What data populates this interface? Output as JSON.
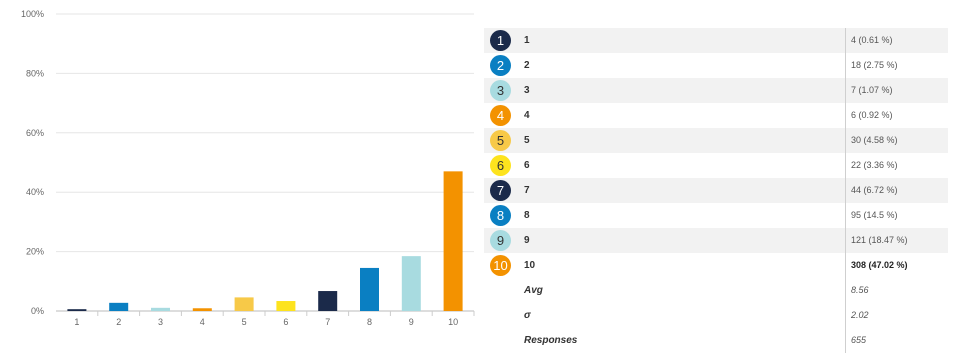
{
  "chart_data": {
    "type": "bar",
    "categories": [
      "1",
      "2",
      "3",
      "4",
      "5",
      "6",
      "7",
      "8",
      "9",
      "10"
    ],
    "values": [
      0.61,
      2.75,
      1.07,
      0.92,
      4.58,
      3.36,
      6.72,
      14.5,
      18.47,
      47.02
    ],
    "colors": [
      "#1b2a4a",
      "#0a7fc2",
      "#a8dbe0",
      "#f39200",
      "#f7c948",
      "#fde31e",
      "#1b2a4a",
      "#0a7fc2",
      "#a8dbe0",
      "#f39200"
    ],
    "ylim": [
      0,
      100
    ],
    "yticks": [
      "0%",
      "20%",
      "40%",
      "60%",
      "80%",
      "100%"
    ],
    "ytick_values": [
      0,
      20,
      40,
      60,
      80,
      100
    ],
    "grid": true,
    "title": "",
    "xlabel": "",
    "ylabel": ""
  },
  "table": {
    "rows": [
      {
        "badge": "1",
        "label": "1",
        "value": "4 (0.61 %)",
        "badge_color": "#1b2a4a",
        "badge_text_color": "#ffffff"
      },
      {
        "badge": "2",
        "label": "2",
        "value": "18 (2.75 %)",
        "badge_color": "#0a7fc2",
        "badge_text_color": "#ffffff"
      },
      {
        "badge": "3",
        "label": "3",
        "value": "7 (1.07 %)",
        "badge_color": "#a8dbe0",
        "badge_text_color": "#333333"
      },
      {
        "badge": "4",
        "label": "4",
        "value": "6 (0.92 %)",
        "badge_color": "#f39200",
        "badge_text_color": "#ffffff"
      },
      {
        "badge": "5",
        "label": "5",
        "value": "30 (4.58 %)",
        "badge_color": "#f7c948",
        "badge_text_color": "#333333"
      },
      {
        "badge": "6",
        "label": "6",
        "value": "22 (3.36 %)",
        "badge_color": "#fde31e",
        "badge_text_color": "#333333"
      },
      {
        "badge": "7",
        "label": "7",
        "value": "44 (6.72 %)",
        "badge_color": "#1b2a4a",
        "badge_text_color": "#ffffff"
      },
      {
        "badge": "8",
        "label": "8",
        "value": "95 (14.5 %)",
        "badge_color": "#0a7fc2",
        "badge_text_color": "#ffffff"
      },
      {
        "badge": "9",
        "label": "9",
        "value": "121 (18.47 %)",
        "badge_color": "#a8dbe0",
        "badge_text_color": "#333333"
      },
      {
        "badge": "10",
        "label": "10",
        "value": "308 (47.02 %)",
        "badge_color": "#f39200",
        "badge_text_color": "#ffffff",
        "bold": true
      }
    ],
    "stats": [
      {
        "label": "Avg",
        "value": "8.56"
      },
      {
        "label": "σ",
        "value": "2.02"
      },
      {
        "label": "Responses",
        "value": "655"
      }
    ]
  }
}
